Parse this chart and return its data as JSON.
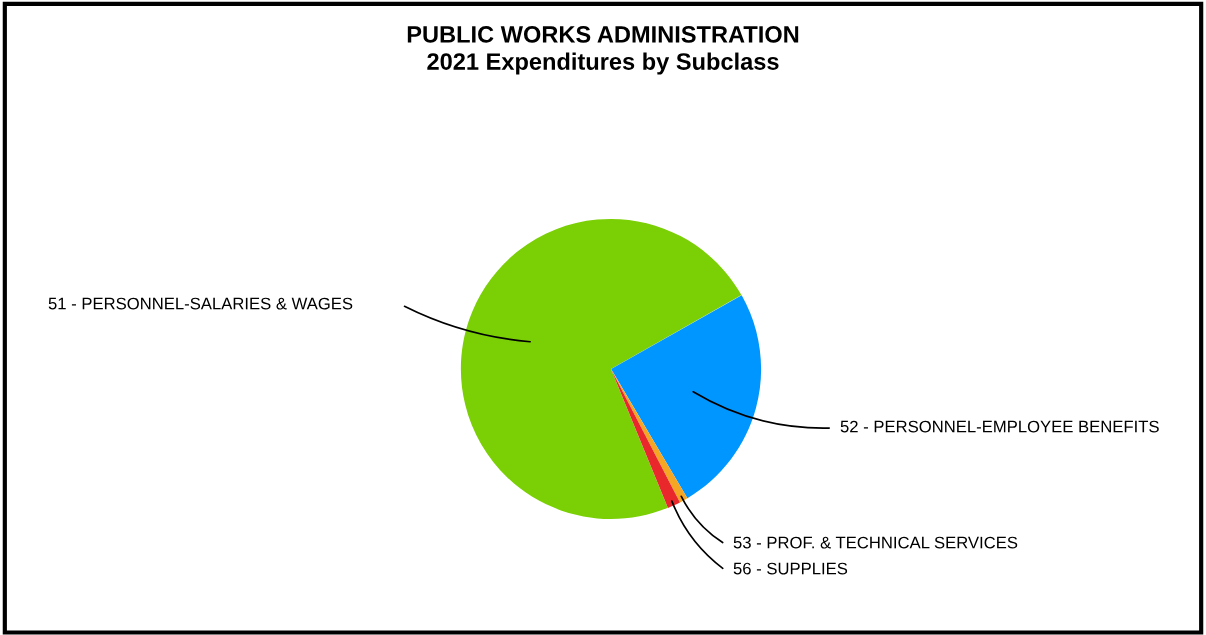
{
  "chart_data": {
    "type": "pie",
    "title": "PUBLIC WORKS ADMINISTRATION\n2021 Expenditures by Subclass",
    "categories": [
      "51 - PERSONNEL-SALARIES & WAGES",
      "52 - PERSONNEL-EMPLOYEE BENEFITS",
      "53 - PROF. & TECHNICAL SERVICES",
      "56 - SUPPLIES"
    ],
    "values": [
      73,
      24.7,
      0.9,
      1.4
    ],
    "colors": [
      "#7acf05",
      "#0096ff",
      "#f5a623",
      "#e8282a"
    ],
    "legend": false
  }
}
